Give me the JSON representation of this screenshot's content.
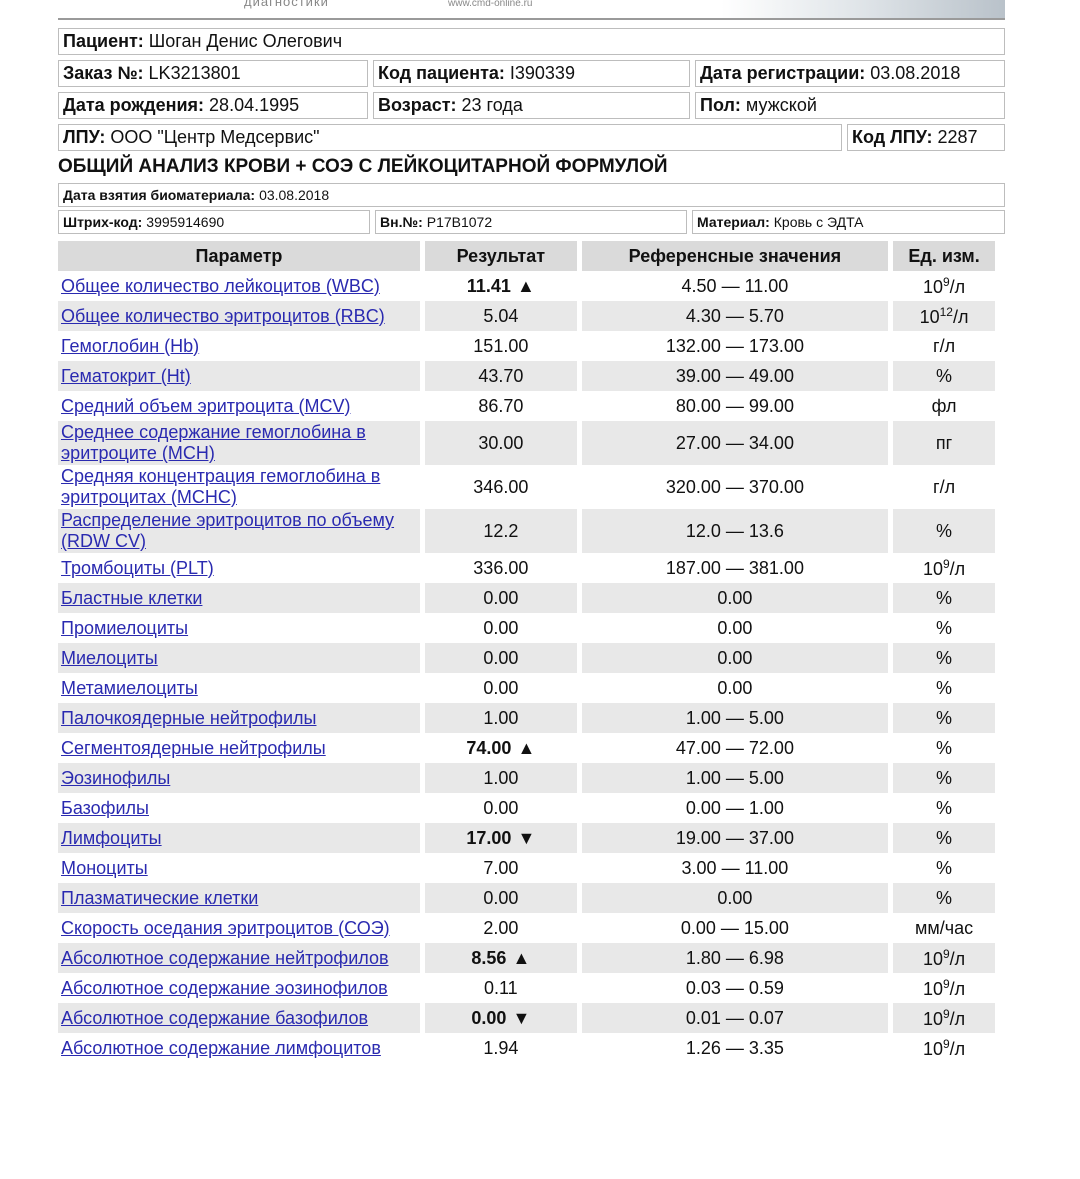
{
  "header": {
    "tagline": "диагностики",
    "site": "www.cmd-online.ru"
  },
  "info": [
    {
      "label": "Пациент:",
      "value": "Шоган Денис Олегович"
    },
    {
      "label": "Заказ №:",
      "value": "LK3213801"
    },
    {
      "label": "Код пациента:",
      "value": "I390339"
    },
    {
      "label": "Дата регистрации:",
      "value": "03.08.2018"
    },
    {
      "label": "Дата рождения:",
      "value": "28.04.1995"
    },
    {
      "label": "Возраст:",
      "value": "23 года"
    },
    {
      "label": "Пол:",
      "value": "мужской"
    },
    {
      "label": "ЛПУ:",
      "value": "ООО \"Центр Медсервис\""
    },
    {
      "label": "Код ЛПУ:",
      "value": "2287"
    }
  ],
  "title": "ОБЩИЙ АНАЛИЗ КРОВИ + СОЭ С ЛЕЙКОЦИТАРНОЙ ФОРМУЛОЙ",
  "sample": [
    {
      "label": "Дата взятия биоматериала:",
      "value": "03.08.2018"
    },
    {
      "label": "Штрих-код:",
      "value": "3995914690"
    },
    {
      "label": "Вн.№:",
      "value": "P17B1072"
    },
    {
      "label": "Материал:",
      "value": "Кровь с ЭДТА"
    }
  ],
  "table": {
    "columns": [
      "Параметр",
      "Результат",
      "Референсные значения",
      "Ед. изм."
    ],
    "rows": [
      {
        "param": "Общее количество лейкоцитов (WBC)",
        "result": "11.41",
        "flag": "▲",
        "ref": "4.50 — 11.00",
        "unit": {
          "base": "10",
          "exp": "9",
          "suffix": "/л"
        }
      },
      {
        "param": "Общее количество эритроцитов (RBC)",
        "result": "5.04",
        "ref": "4.30 — 5.70",
        "unit": {
          "base": "10",
          "exp": "12",
          "suffix": "/л"
        }
      },
      {
        "param": "Гемоглобин (Hb)",
        "result": "151.00",
        "ref": "132.00 — 173.00",
        "unit": "г/л"
      },
      {
        "param": "Гематокрит (Ht)",
        "result": "43.70",
        "ref": "39.00 — 49.00",
        "unit": "%"
      },
      {
        "param": "Средний объем эритроцита (MCV)",
        "result": "86.70",
        "ref": "80.00 — 99.00",
        "unit": "фл"
      },
      {
        "param": "Среднее содержание гемоглобина в эритроците (MCH)",
        "result": "30.00",
        "ref": "27.00 — 34.00",
        "unit": "пг"
      },
      {
        "param": "Средняя концентрация гемоглобина в эритроцитах (MCHC)",
        "result": "346.00",
        "ref": "320.00 — 370.00",
        "unit": "г/л"
      },
      {
        "param": "Распределение эритроцитов по объему (RDW CV)",
        "result": "12.2",
        "ref": "12.0 — 13.6",
        "unit": "%"
      },
      {
        "param": "Тромбоциты (PLT)",
        "result": "336.00",
        "ref": "187.00 — 381.00",
        "unit": {
          "base": "10",
          "exp": "9",
          "suffix": "/л"
        }
      },
      {
        "param": "Бластные клетки",
        "result": "0.00",
        "ref": "0.00",
        "unit": "%"
      },
      {
        "param": "Промиелоциты",
        "result": "0.00",
        "ref": "0.00",
        "unit": "%"
      },
      {
        "param": "Миелоциты",
        "result": "0.00",
        "ref": "0.00",
        "unit": "%"
      },
      {
        "param": "Метамиелоциты",
        "result": "0.00",
        "ref": "0.00",
        "unit": "%"
      },
      {
        "param": "Палочкоядерные нейтрофилы",
        "result": "1.00",
        "ref": "1.00 — 5.00",
        "unit": "%"
      },
      {
        "param": "Сегментоядерные нейтрофилы",
        "result": "74.00",
        "flag": "▲",
        "ref": "47.00 — 72.00",
        "unit": "%"
      },
      {
        "param": "Эозинофилы",
        "result": "1.00",
        "ref": "1.00 — 5.00",
        "unit": "%"
      },
      {
        "param": "Базофилы",
        "result": "0.00",
        "ref": "0.00 — 1.00",
        "unit": "%"
      },
      {
        "param": "Лимфоциты",
        "result": "17.00",
        "flag": "▼",
        "ref": "19.00 — 37.00",
        "unit": "%"
      },
      {
        "param": "Моноциты",
        "result": "7.00",
        "ref": "3.00 — 11.00",
        "unit": "%"
      },
      {
        "param": "Плазматические клетки",
        "result": "0.00",
        "ref": "0.00",
        "unit": "%"
      },
      {
        "param": "Скорость оседания эритроцитов (СОЭ)",
        "result": "2.00",
        "ref": "0.00 — 15.00",
        "unit": "мм/час"
      },
      {
        "param": "Абсолютное содержание нейтрофилов",
        "result": "8.56",
        "flag": "▲",
        "ref": "1.80 — 6.98",
        "unit": {
          "base": "10",
          "exp": "9",
          "suffix": "/л"
        }
      },
      {
        "param": "Абсолютное содержание эозинофилов",
        "result": "0.11",
        "ref": "0.03 — 0.59",
        "unit": {
          "base": "10",
          "exp": "9",
          "suffix": "/л"
        }
      },
      {
        "param": "Абсолютное содержание базофилов",
        "result": "0.00",
        "flag": "▼",
        "ref": "0.01 — 0.07",
        "unit": {
          "base": "10",
          "exp": "9",
          "suffix": "/л"
        }
      },
      {
        "param": "Абсолютное содержание лимфоцитов",
        "result": "1.94",
        "ref": "1.26 — 3.35",
        "unit": {
          "base": "10",
          "exp": "9",
          "suffix": "/л"
        }
      }
    ]
  }
}
